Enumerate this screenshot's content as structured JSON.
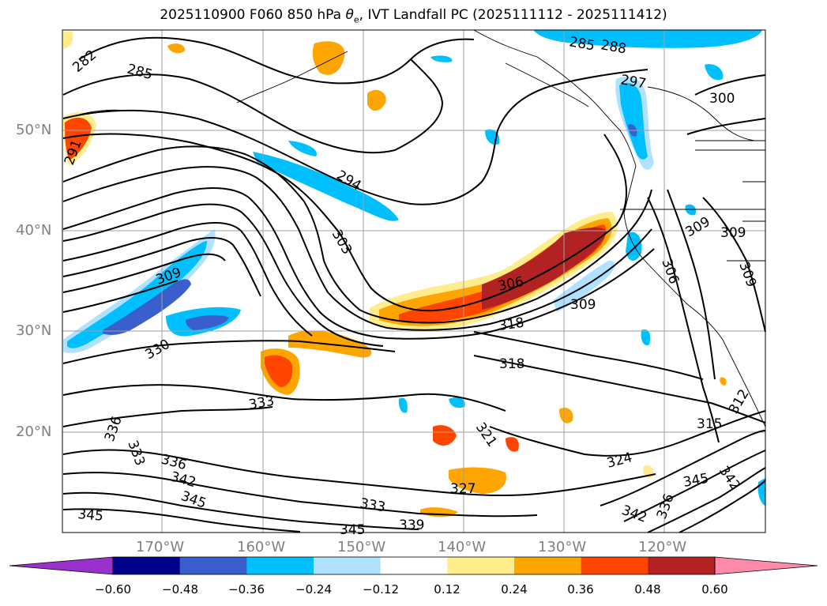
{
  "title": "2025110900 F060 850 hPa θe, IVT Landfall PC (2025111112 - 2025111412)",
  "title_prefix": "2025110900 F060 850 hPa ",
  "title_theta": "θ",
  "title_sub": "e",
  "title_suffix": ", IVT Landfall PC (2025111112 - 2025111412)",
  "lat_labels": [
    "50°N",
    "40°N",
    "30°N",
    "20°N"
  ],
  "lon_labels": [
    "170°W",
    "160°W",
    "150°W",
    "140°W",
    "130°W",
    "120°W"
  ],
  "contour_labels": [
    "282",
    "285",
    "291",
    "294",
    "303",
    "309",
    "330",
    "333",
    "336",
    "333",
    "336",
    "342",
    "345",
    "345",
    "333",
    "339",
    "345",
    "318",
    "318",
    "321",
    "327",
    "324",
    "306",
    "309",
    "297",
    "288",
    "285",
    "300",
    "309",
    "309",
    "306",
    "309",
    "312",
    "315",
    "342",
    "345",
    "336",
    "342"
  ],
  "colorbar": {
    "ticks": [
      "−0.60",
      "−0.48",
      "−0.36",
      "−0.24",
      "−0.12",
      "0.12",
      "0.24",
      "0.36",
      "0.48",
      "0.60"
    ],
    "colors": [
      "#9932CC",
      "#00008B",
      "#3A5FCD",
      "#00BFFF",
      "#B0E2FF",
      "#FFFFFF",
      "#FFEC8B",
      "#FFA500",
      "#FF4500",
      "#B22222",
      "#FF89A8"
    ]
  },
  "chart_data": {
    "type": "map",
    "projection": "lat-lon",
    "lon_range": [
      -180,
      -110
    ],
    "lat_range": [
      10,
      60
    ],
    "contour_field": "850 hPa theta-e (K)",
    "shading_field": "IVT Landfall PC",
    "shading_bounds": [
      -0.6,
      -0.48,
      -0.36,
      -0.24,
      -0.12,
      0.12,
      0.24,
      0.36,
      0.48,
      0.6
    ],
    "grid": true
  }
}
